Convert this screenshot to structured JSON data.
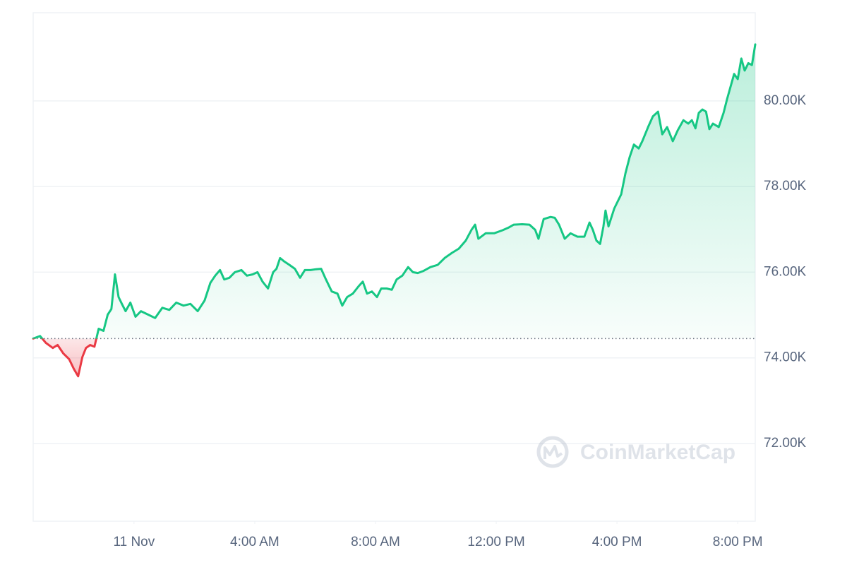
{
  "chart_data": {
    "type": "line",
    "watermark": "CoinMarketCap",
    "x": [
      -3.34,
      -3.11,
      -2.92,
      -2.69,
      -2.53,
      -2.34,
      -2.15,
      -1.99,
      -1.85,
      -1.71,
      -1.59,
      -1.45,
      -1.31,
      -1.17,
      -1.01,
      -0.87,
      -0.75,
      -0.63,
      -0.51,
      -0.4,
      -0.28,
      -0.12,
      0.05,
      0.23,
      0.47,
      0.7,
      0.94,
      1.17,
      1.4,
      1.64,
      1.87,
      2.11,
      2.34,
      2.53,
      2.69,
      2.85,
      2.99,
      3.16,
      3.34,
      3.56,
      3.74,
      3.93,
      4.09,
      4.26,
      4.44,
      4.61,
      4.72,
      4.84,
      4.98,
      5.15,
      5.33,
      5.5,
      5.66,
      5.85,
      6.03,
      6.2,
      6.36,
      6.55,
      6.74,
      6.9,
      7.06,
      7.25,
      7.44,
      7.58,
      7.72,
      7.88,
      8.05,
      8.19,
      8.37,
      8.54,
      8.7,
      8.89,
      9.08,
      9.24,
      9.4,
      9.59,
      9.82,
      10.06,
      10.29,
      10.53,
      10.76,
      10.99,
      11.18,
      11.3,
      11.41,
      11.65,
      11.93,
      12.21,
      12.4,
      12.58,
      12.86,
      13.1,
      13.29,
      13.4,
      13.57,
      13.8,
      13.94,
      14.08,
      14.27,
      14.46,
      14.69,
      14.92,
      15.09,
      15.2,
      15.32,
      15.44,
      15.55,
      15.62,
      15.72,
      15.91,
      16.14,
      16.28,
      16.42,
      16.56,
      16.72,
      16.84,
      17.03,
      17.19,
      17.36,
      17.5,
      17.66,
      17.85,
      18.01,
      18.2,
      18.36,
      18.48,
      18.6,
      18.71,
      18.83,
      18.95,
      19.06,
      19.18,
      19.37,
      19.53,
      19.65,
      19.88,
      20.0,
      20.12,
      20.23,
      20.35,
      20.47,
      20.58
    ],
    "values": [
      74450,
      74510,
      74350,
      74230,
      74300,
      74100,
      73970,
      73740,
      73570,
      74020,
      74230,
      74300,
      74260,
      74680,
      74630,
      75010,
      75140,
      75950,
      75420,
      75260,
      75090,
      75290,
      74960,
      75090,
      75010,
      74930,
      75170,
      75120,
      75290,
      75220,
      75260,
      75090,
      75340,
      75750,
      75920,
      76050,
      75830,
      75870,
      76000,
      76050,
      75920,
      75950,
      76000,
      75780,
      75620,
      76000,
      76080,
      76330,
      76250,
      76170,
      76080,
      75870,
      76050,
      76050,
      76070,
      76080,
      75830,
      75550,
      75500,
      75220,
      75420,
      75500,
      75670,
      75780,
      75500,
      75550,
      75420,
      75620,
      75620,
      75590,
      75830,
      75920,
      76120,
      76000,
      75980,
      76030,
      76120,
      76170,
      76330,
      76450,
      76550,
      76740,
      76990,
      77110,
      76780,
      76910,
      76910,
      76980,
      77040,
      77110,
      77120,
      77110,
      76990,
      76780,
      77240,
      77290,
      77270,
      77110,
      76780,
      76910,
      76830,
      76830,
      77160,
      76990,
      76740,
      76660,
      77070,
      77440,
      77070,
      77490,
      77820,
      78310,
      78690,
      78980,
      78890,
      79060,
      79390,
      79640,
      79750,
      79220,
      79390,
      79060,
      79310,
      79550,
      79470,
      79550,
      79360,
      79720,
      79800,
      79750,
      79340,
      79470,
      79390,
      79720,
      80050,
      80630,
      80510,
      80990,
      80710,
      80880,
      80840,
      81320
    ],
    "baseline": 74450,
    "colors": {
      "up": "#16c784",
      "down": "#ea3943"
    },
    "xlim": [
      -3.34,
      20.58
    ],
    "xticks": [
      {
        "value": 0,
        "label": "11 Nov"
      },
      {
        "value": 4,
        "label": "4:00 AM"
      },
      {
        "value": 8,
        "label": "8:00 AM"
      },
      {
        "value": 12,
        "label": "12:00 PM"
      },
      {
        "value": 16,
        "label": "4:00 PM"
      },
      {
        "value": 20,
        "label": "8:00 PM"
      }
    ],
    "ylim": [
      70185,
      82060
    ],
    "yticks": [
      {
        "value": 72000,
        "label": "72.00K"
      },
      {
        "value": 74000,
        "label": "74.00K"
      },
      {
        "value": 76000,
        "label": "76.00K"
      },
      {
        "value": 78000,
        "label": "78.00K"
      },
      {
        "value": 80000,
        "label": "80.00K"
      }
    ],
    "grid": true
  }
}
